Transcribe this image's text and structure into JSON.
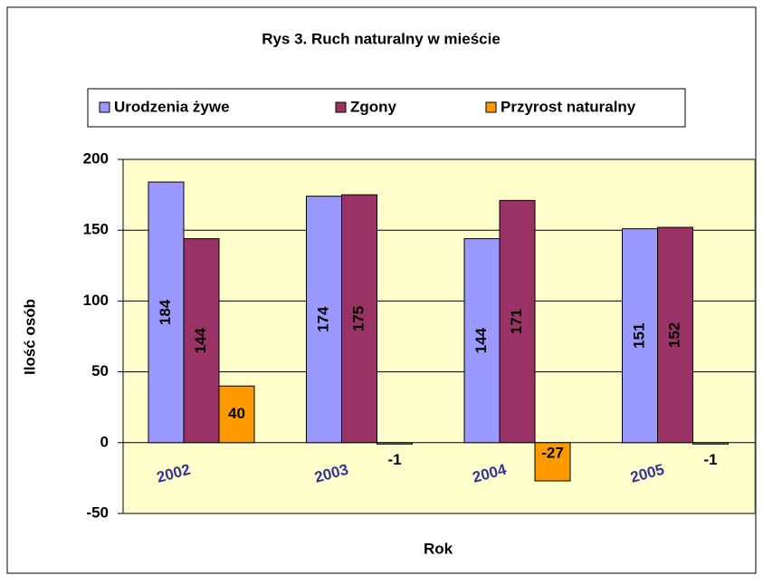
{
  "chart_data": {
    "type": "bar",
    "title": "Rys 3. Ruch naturalny w mieście",
    "x_label": "Rok",
    "y_label": "Ilość osób",
    "categories": [
      "2002",
      "2003",
      "2004",
      "2005"
    ],
    "series": [
      {
        "name": "Urodzenia żywe",
        "color": "#9999ff",
        "values": [
          184,
          174,
          144,
          151
        ]
      },
      {
        "name": "Zgony",
        "color": "#993366",
        "values": [
          144,
          175,
          171,
          152
        ]
      },
      {
        "name": "Przyrost naturalny",
        "color": "#ff9900",
        "values": [
          40,
          -1,
          -27,
          -1
        ]
      }
    ],
    "ylim": [
      -50,
      200
    ],
    "yticks": [
      -50,
      0,
      50,
      100,
      150,
      200
    ],
    "grid": true,
    "legend": "top",
    "plot_background": "#ffffcc"
  }
}
